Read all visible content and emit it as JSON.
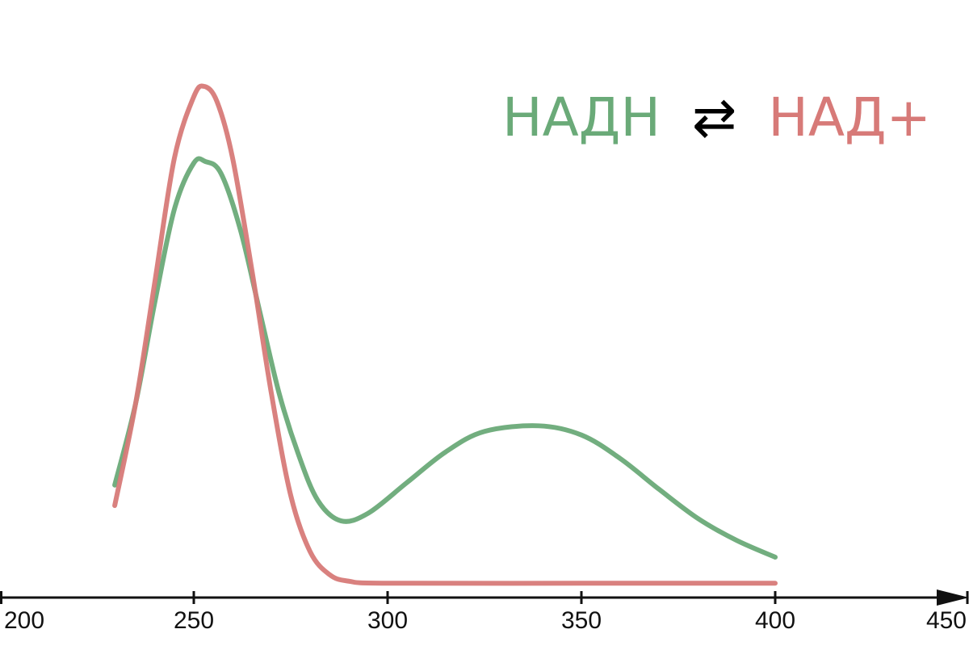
{
  "chart_data": {
    "type": "line",
    "title_parts": [
      {
        "text": "НАДН",
        "color": "#6aaa78"
      },
      {
        "text": "⇄",
        "color": "#000000"
      },
      {
        "text": "НАД+",
        "color": "#d77a78"
      }
    ],
    "xlabel": "",
    "ylabel": "",
    "xlim": [
      200,
      450
    ],
    "x_ticks": [
      200,
      250,
      300,
      350,
      400,
      450
    ],
    "y_axis_shown": false,
    "grid": false,
    "series": [
      {
        "name": "НАДН",
        "color": "#6aaa78",
        "points": [
          [
            229.6,
            0.22
          ],
          [
            235,
            0.38
          ],
          [
            240,
            0.58
          ],
          [
            245,
            0.76
          ],
          [
            250,
            0.85
          ],
          [
            253,
            0.853
          ],
          [
            257,
            0.83
          ],
          [
            262,
            0.72
          ],
          [
            267,
            0.56
          ],
          [
            272,
            0.4
          ],
          [
            277,
            0.28
          ],
          [
            282,
            0.19
          ],
          [
            288,
            0.15
          ],
          [
            295,
            0.165
          ],
          [
            305,
            0.225
          ],
          [
            315,
            0.285
          ],
          [
            325,
            0.325
          ],
          [
            339,
            0.336
          ],
          [
            350,
            0.318
          ],
          [
            360,
            0.272
          ],
          [
            370,
            0.212
          ],
          [
            380,
            0.155
          ],
          [
            390,
            0.112
          ],
          [
            400,
            0.079
          ]
        ]
      },
      {
        "name": "НАД+",
        "color": "#d77a78",
        "points": [
          [
            229.6,
            0.18
          ],
          [
            235,
            0.38
          ],
          [
            240,
            0.62
          ],
          [
            245,
            0.86
          ],
          [
            250,
            0.98
          ],
          [
            252.7,
            1.0
          ],
          [
            256,
            0.97
          ],
          [
            260,
            0.86
          ],
          [
            265,
            0.64
          ],
          [
            270,
            0.4
          ],
          [
            275,
            0.2
          ],
          [
            280,
            0.09
          ],
          [
            285,
            0.045
          ],
          [
            290,
            0.032
          ],
          [
            300,
            0.028
          ],
          [
            350,
            0.028
          ],
          [
            400,
            0.028
          ]
        ]
      }
    ]
  }
}
